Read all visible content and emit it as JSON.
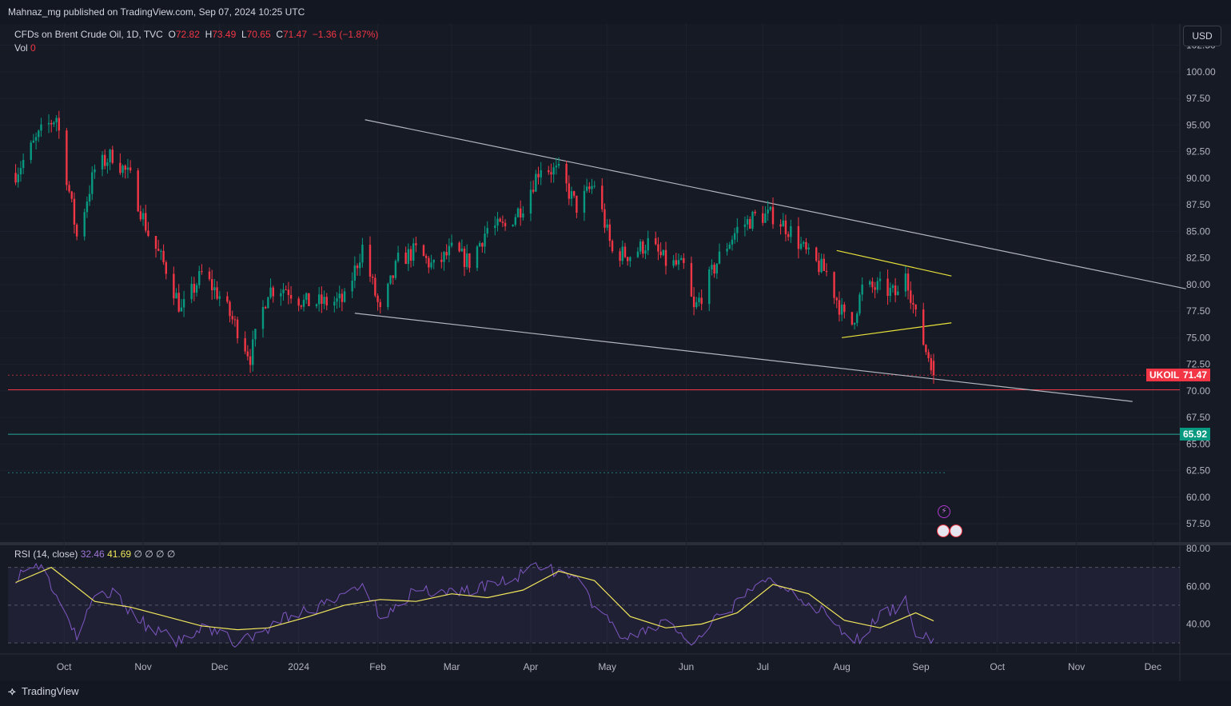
{
  "header": {
    "publisher": "Mahnaz_mg published on TradingView.com, Sep 07, 2024 10:25 UTC"
  },
  "legend": {
    "symbol": "CFDs on Brent Crude Oil, 1D, TVC",
    "open_label": "O",
    "open": "72.82",
    "high_label": "H",
    "high": "73.49",
    "low_label": "L",
    "low": "70.65",
    "close_label": "C",
    "close": "71.47",
    "change": "−1.36 (−1.87%)",
    "vol_label": "Vol",
    "vol": "0"
  },
  "rsi_legend": {
    "label": "RSI (14, close)",
    "rsi": "32.46",
    "ma": "41.69",
    "extra": "∅ ∅ ∅ ∅"
  },
  "currency_button": "USD",
  "price_tags": {
    "symbol_tag": "UKOIL",
    "last_price": "71.47",
    "support_price": "65.92"
  },
  "footer": {
    "brand": "TradingView"
  },
  "colors": {
    "up": "#089981",
    "down": "#f23645",
    "rsi": "#7e57c2",
    "rsi_ma": "#f1e75b",
    "trendline": "#b2b5be",
    "pattern": "#e8e23a",
    "support": "#26a69a",
    "resistance": "#f23645"
  },
  "chart_data": {
    "type": "candlestick",
    "symbol": "UKOIL",
    "timeframe": "1D",
    "price_axis": {
      "range": [
        56,
        103
      ],
      "ticks": [
        "102.50",
        "100.00",
        "97.50",
        "95.00",
        "92.50",
        "90.00",
        "87.50",
        "85.00",
        "82.50",
        "80.00",
        "77.50",
        "75.00",
        "72.50",
        "70.00",
        "67.50",
        "65.00",
        "62.50",
        "60.00",
        "57.50"
      ]
    },
    "time_axis": {
      "labels": [
        "Oct",
        "Nov",
        "Dec",
        "2024",
        "Feb",
        "Mar",
        "Apr",
        "May",
        "Jun",
        "Jul",
        "Aug",
        "Sep",
        "Oct",
        "Nov",
        "Dec"
      ]
    },
    "price_path": [
      [
        "2023-09-12",
        90.5
      ],
      [
        "2023-09-22",
        94.3
      ],
      [
        "2023-09-28",
        95.8
      ],
      [
        "2023-10-06",
        84.5
      ],
      [
        "2023-10-13",
        90.8
      ],
      [
        "2023-10-20",
        92.2
      ],
      [
        "2023-10-27",
        90.0
      ],
      [
        "2023-11-03",
        84.8
      ],
      [
        "2023-11-10",
        81.5
      ],
      [
        "2023-11-16",
        77.5
      ],
      [
        "2023-11-24",
        81.0
      ],
      [
        "2023-12-01",
        78.9
      ],
      [
        "2023-12-08",
        75.8
      ],
      [
        "2023-12-13",
        73.2
      ],
      [
        "2023-12-20",
        79.5
      ],
      [
        "2023-12-27",
        79.7
      ],
      [
        "2024-01-03",
        78.3
      ],
      [
        "2024-01-12",
        78.3
      ],
      [
        "2024-01-19",
        78.5
      ],
      [
        "2024-01-26",
        83.5
      ],
      [
        "2024-02-02",
        77.3
      ],
      [
        "2024-02-09",
        82.2
      ],
      [
        "2024-02-16",
        83.2
      ],
      [
        "2024-02-23",
        81.6
      ],
      [
        "2024-03-01",
        83.2
      ],
      [
        "2024-03-08",
        82.1
      ],
      [
        "2024-03-15",
        85.3
      ],
      [
        "2024-03-22",
        85.4
      ],
      [
        "2024-03-29",
        87.5
      ],
      [
        "2024-04-05",
        91.2
      ],
      [
        "2024-04-12",
        90.5
      ],
      [
        "2024-04-19",
        87.3
      ],
      [
        "2024-04-26",
        89.5
      ],
      [
        "2024-05-03",
        83.0
      ],
      [
        "2024-05-10",
        82.8
      ],
      [
        "2024-05-17",
        83.9
      ],
      [
        "2024-05-24",
        82.1
      ],
      [
        "2024-05-31",
        81.6
      ],
      [
        "2024-06-04",
        77.5
      ],
      [
        "2024-06-14",
        82.6
      ],
      [
        "2024-06-21",
        85.2
      ],
      [
        "2024-06-28",
        86.4
      ],
      [
        "2024-07-05",
        86.5
      ],
      [
        "2024-07-12",
        85.0
      ],
      [
        "2024-07-19",
        82.6
      ],
      [
        "2024-07-26",
        81.1
      ],
      [
        "2024-08-02",
        76.8
      ],
      [
        "2024-08-05",
        76.3
      ],
      [
        "2024-08-09",
        79.6
      ],
      [
        "2024-08-16",
        79.7
      ],
      [
        "2024-08-23",
        79.0
      ],
      [
        "2024-08-26",
        81.4
      ],
      [
        "2024-08-30",
        76.9
      ],
      [
        "2024-09-03",
        73.8
      ],
      [
        "2024-09-05",
        72.8
      ],
      [
        "2024-09-06",
        71.47
      ]
    ],
    "last_candle": {
      "date": "2024-09-06",
      "open": 72.82,
      "high": 73.49,
      "low": 70.65,
      "close": 71.47
    },
    "horizontal_levels": [
      {
        "price": 70.1,
        "color": "resistance",
        "style": "solid"
      },
      {
        "price": 65.92,
        "color": "support",
        "style": "solid"
      },
      {
        "price": 62.3,
        "color": "support",
        "style": "dotted"
      },
      {
        "price": 71.47,
        "color": "resistance",
        "style": "dotted"
      }
    ],
    "trendlines": [
      {
        "name": "channel-top",
        "from": [
          "2024-01-27",
          95.5
        ],
        "to": [
          "2024-12-14",
          79.6
        ]
      },
      {
        "name": "channel-bottom",
        "from": [
          "2024-01-23",
          77.3
        ],
        "to": [
          "2024-11-23",
          69.0
        ]
      },
      {
        "name": "wedge-top",
        "from": [
          "2024-07-30",
          83.2
        ],
        "to": [
          "2024-09-13",
          80.8
        ]
      },
      {
        "name": "wedge-bottom",
        "from": [
          "2024-08-01",
          75.0
        ],
        "to": [
          "2024-09-13",
          76.4
        ]
      }
    ],
    "rsi": {
      "axis_ticks": [
        "80.00",
        "60.00",
        "40.00"
      ],
      "range": [
        25,
        80
      ],
      "bands": [
        30,
        50,
        70
      ],
      "rsi_path": [
        [
          "2023-09-12",
          65
        ],
        [
          "2023-09-22",
          72
        ],
        [
          "2023-10-06",
          32
        ],
        [
          "2023-10-13",
          55
        ],
        [
          "2023-10-20",
          57
        ],
        [
          "2023-11-03",
          38
        ],
        [
          "2023-11-16",
          30
        ],
        [
          "2023-11-24",
          40
        ],
        [
          "2023-12-08",
          30
        ],
        [
          "2023-12-13",
          32
        ],
        [
          "2023-12-27",
          44
        ],
        [
          "2024-01-12",
          50
        ],
        [
          "2024-01-26",
          62
        ],
        [
          "2024-02-02",
          44
        ],
        [
          "2024-02-16",
          58
        ],
        [
          "2024-03-01",
          57
        ],
        [
          "2024-03-15",
          60
        ],
        [
          "2024-03-29",
          66
        ],
        [
          "2024-04-05",
          72
        ],
        [
          "2024-04-19",
          62
        ],
        [
          "2024-05-03",
          38
        ],
        [
          "2024-05-10",
          32
        ],
        [
          "2024-05-24",
          42
        ],
        [
          "2024-06-04",
          28
        ],
        [
          "2024-06-14",
          44
        ],
        [
          "2024-06-28",
          59
        ],
        [
          "2024-07-05",
          64
        ],
        [
          "2024-07-19",
          52
        ],
        [
          "2024-07-26",
          44
        ],
        [
          "2024-08-02",
          34
        ],
        [
          "2024-08-05",
          29
        ],
        [
          "2024-08-16",
          44
        ],
        [
          "2024-08-26",
          52
        ],
        [
          "2024-08-30",
          36
        ],
        [
          "2024-09-06",
          32.46
        ]
      ],
      "ma_path": [
        [
          "2023-09-12",
          62
        ],
        [
          "2023-09-26",
          70
        ],
        [
          "2023-10-13",
          52
        ],
        [
          "2023-10-27",
          49
        ],
        [
          "2023-11-10",
          44
        ],
        [
          "2023-11-24",
          39
        ],
        [
          "2023-12-08",
          37
        ],
        [
          "2023-12-20",
          38
        ],
        [
          "2024-01-05",
          44
        ],
        [
          "2024-01-19",
          50
        ],
        [
          "2024-02-02",
          53
        ],
        [
          "2024-02-16",
          52
        ],
        [
          "2024-03-01",
          56
        ],
        [
          "2024-03-15",
          54
        ],
        [
          "2024-03-29",
          58
        ],
        [
          "2024-04-12",
          68
        ],
        [
          "2024-04-26",
          63
        ],
        [
          "2024-05-10",
          44
        ],
        [
          "2024-05-24",
          38
        ],
        [
          "2024-06-07",
          40
        ],
        [
          "2024-06-21",
          46
        ],
        [
          "2024-07-05",
          61
        ],
        [
          "2024-07-19",
          56
        ],
        [
          "2024-08-02",
          42
        ],
        [
          "2024-08-16",
          38
        ],
        [
          "2024-08-30",
          46
        ],
        [
          "2024-09-06",
          41.69
        ]
      ]
    }
  }
}
